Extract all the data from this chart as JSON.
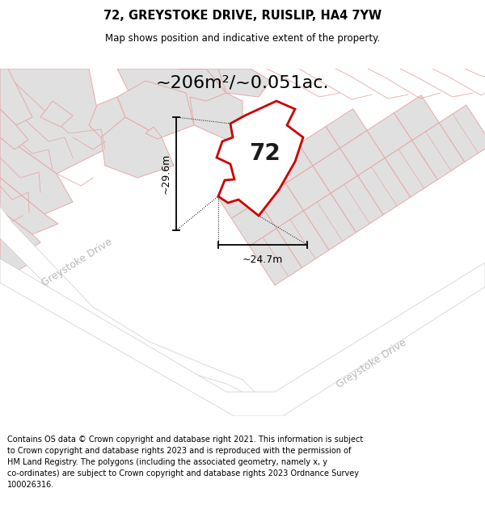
{
  "title": "72, GREYSTOKE DRIVE, RUISLIP, HA4 7YW",
  "subtitle": "Map shows position and indicative extent of the property.",
  "area_text": "~206m²/~0.051ac.",
  "dim_width": "~24.7m",
  "dim_height": "~29.6m",
  "plot_label": "72",
  "footer_text": "Contains OS data © Crown copyright and database right 2021. This information is subject to Crown copyright and database rights 2023 and is reproduced with the permission of HM Land Registry. The polygons (including the associated geometry, namely x, y co-ordinates) are subject to Crown copyright and database rights 2023 Ordnance Survey 100026316.",
  "pink": "#e8a8a8",
  "pink_light": "#f0c8c8",
  "red": "#cc0000",
  "bldg_gray": "#e0e0e0",
  "road_white": "#ffffff",
  "label_gray": "#c0c0c0",
  "title_fs": 10.5,
  "subtitle_fs": 8.5,
  "area_fs": 16,
  "dim_fs": 9,
  "label_fs": 20,
  "footer_fs": 7
}
